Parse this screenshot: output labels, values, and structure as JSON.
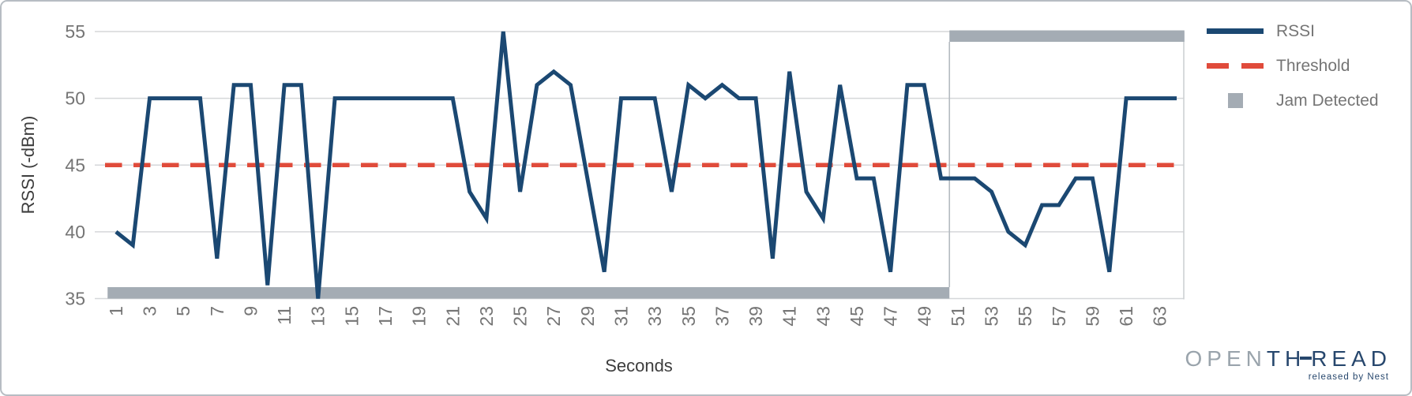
{
  "figure": {
    "x_axis_title": "Seconds",
    "y_axis_title": "RSSI (-dBm)"
  },
  "legend": {
    "items": [
      {
        "label": "RSSI",
        "swatch": "solid-line",
        "color": "#1b4872"
      },
      {
        "label": "Threshold",
        "swatch": "dashed-line",
        "color": "#e04b3b"
      },
      {
        "label": "Jam Detected",
        "swatch": "square",
        "color": "#a4acb4"
      }
    ]
  },
  "logo": {
    "open": "OPEN",
    "thread_th": "TH",
    "thread_read": "READ",
    "tagline": "released by Nest"
  },
  "chart_data": {
    "type": "line",
    "title": "",
    "xlabel": "Seconds",
    "ylabel": "RSSI (-dBm)",
    "ylim": [
      35,
      55
    ],
    "y_ticks": [
      55,
      50,
      45,
      40,
      35
    ],
    "x_ticks": [
      1,
      3,
      5,
      7,
      9,
      11,
      13,
      15,
      17,
      19,
      21,
      23,
      25,
      27,
      29,
      31,
      33,
      35,
      37,
      39,
      41,
      43,
      45,
      47,
      49,
      51,
      53,
      55,
      57,
      59,
      61,
      63
    ],
    "grid": true,
    "legend_position": "top-right",
    "seconds": [
      1,
      2,
      3,
      4,
      5,
      6,
      7,
      8,
      9,
      10,
      11,
      12,
      13,
      14,
      15,
      16,
      17,
      18,
      19,
      20,
      21,
      22,
      23,
      24,
      25,
      26,
      27,
      28,
      29,
      30,
      31,
      32,
      33,
      34,
      35,
      36,
      37,
      38,
      39,
      40,
      41,
      42,
      43,
      44,
      45,
      46,
      47,
      48,
      49,
      50,
      51,
      52,
      53,
      54,
      55,
      56,
      57,
      58,
      59,
      60,
      61,
      62,
      63,
      64
    ],
    "series": [
      {
        "name": "RSSI",
        "type": "line",
        "color": "#1b4872",
        "values": [
          40,
          39,
          50,
          50,
          50,
          50,
          38,
          51,
          51,
          36,
          51,
          51,
          35,
          50,
          50,
          50,
          50,
          50,
          50,
          50,
          50,
          43,
          41,
          55,
          43,
          51,
          52,
          51,
          44,
          37,
          50,
          50,
          50,
          43,
          51,
          50,
          51,
          50,
          50,
          38,
          52,
          43,
          41,
          51,
          44,
          44,
          37,
          51,
          51,
          44,
          44,
          44,
          43,
          40,
          39,
          42,
          42,
          44,
          44,
          37,
          50,
          50,
          50,
          50
        ]
      },
      {
        "name": "Threshold",
        "type": "dashed-line",
        "color": "#e04b3b",
        "constant_value": 45
      },
      {
        "name": "Jam Detected",
        "type": "level-band",
        "color": "#a4acb4",
        "off_seconds_range": [
          1,
          50
        ],
        "on_seconds_range": [
          51,
          64
        ],
        "transition_second": 50.5,
        "plotted_levels": {
          "off": 35.3,
          "on": 54.7
        }
      }
    ]
  }
}
